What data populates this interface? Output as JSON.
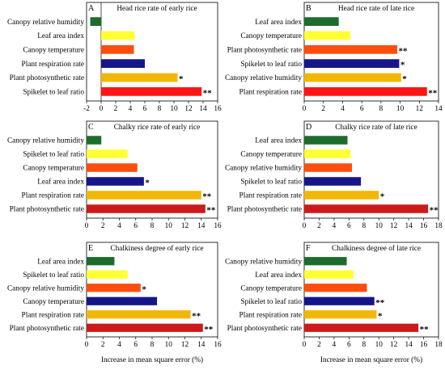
{
  "colors": {
    "dark_green": "#1e6b2e",
    "yellow": "#ffff33",
    "orange_red": "#ff4d0d",
    "navy": "#16168a",
    "gold": "#f2b705",
    "red": "#ff1515",
    "dark_red": "#cc1a1a"
  },
  "xlabel": "Increase in mean square error (%)",
  "chart_data": [
    {
      "type": "bar",
      "letter": "A",
      "title": "Head rice rate of early rice",
      "xlim": [
        -2,
        16
      ],
      "ticks": [
        "-2",
        "0",
        "2",
        "4",
        "6",
        "8",
        "10",
        "12",
        "14",
        "16"
      ],
      "categories": [
        "Canopy relative humidity",
        "Leaf area index",
        "Canopy temperature",
        "Plant respiration rate",
        "Plant photosynthetic rate",
        "Spikelet to leaf ratio"
      ],
      "values": [
        -1.5,
        4.6,
        4.5,
        6.0,
        10.5,
        13.8
      ],
      "bar_colors": [
        "#1e6b2e",
        "#ffff33",
        "#ff4d0d",
        "#16168a",
        "#f2b705",
        "#ff1515"
      ],
      "stars": [
        "",
        "",
        "",
        "",
        "*",
        "**"
      ]
    },
    {
      "type": "bar",
      "letter": "B",
      "title": "Head rice rate of late rice",
      "xlim": [
        0,
        14
      ],
      "ticks": [
        "0",
        "2",
        "4",
        "6",
        "8",
        "10",
        "12",
        "14"
      ],
      "categories": [
        "Leaf area index",
        "Canopy temperature",
        "Plant photosynthetic rate",
        "Spikelet to leaf ratio",
        "Canopy relative humidity",
        "Plant respiration rate"
      ],
      "values": [
        3.6,
        4.8,
        9.7,
        9.9,
        10.1,
        12.8
      ],
      "bar_colors": [
        "#1e6b2e",
        "#ffff33",
        "#ff4d0d",
        "#16168a",
        "#f2b705",
        "#ff1515"
      ],
      "stars": [
        "",
        "",
        "**",
        "*",
        "*",
        "**"
      ]
    },
    {
      "type": "bar",
      "letter": "C",
      "title": "Chalky rice rate of early rice",
      "xlim": [
        0,
        16
      ],
      "ticks": [
        "0",
        "2",
        "4",
        "6",
        "8",
        "10",
        "12",
        "14",
        "16"
      ],
      "categories": [
        "Canopy relative humidity",
        "Spikelet to leaf ratio",
        "Canopy temperature",
        "Leaf area index",
        "Plant respiration rate",
        "Plant photosynthetic rate"
      ],
      "values": [
        1.8,
        5.0,
        6.2,
        7.0,
        14.0,
        14.5
      ],
      "bar_colors": [
        "#1e6b2e",
        "#ffff33",
        "#ff4d0d",
        "#16168a",
        "#f2b705",
        "#cc1a1a"
      ],
      "stars": [
        "",
        "",
        "",
        "*",
        "**",
        "**"
      ]
    },
    {
      "type": "bar",
      "letter": "D",
      "title": "Chalky rice rate of late rice",
      "xlim": [
        0,
        18
      ],
      "ticks": [
        "0",
        "2",
        "4",
        "6",
        "8",
        "10",
        "12",
        "14",
        "16",
        "18"
      ],
      "categories": [
        "Leaf area index",
        "Canopy temperature",
        "Canopy relative humidity",
        "Spikelet to leaf ratio",
        "Plant respiration rate",
        "Plant photosynthetic rate"
      ],
      "values": [
        5.8,
        6.2,
        6.4,
        7.6,
        10.0,
        16.6
      ],
      "bar_colors": [
        "#1e6b2e",
        "#ffff33",
        "#ff4d0d",
        "#16168a",
        "#f2b705",
        "#cc1a1a"
      ],
      "stars": [
        "",
        "",
        "",
        "",
        "*",
        "**"
      ]
    },
    {
      "type": "bar",
      "letter": "E",
      "title": "Chalkiness degree of early rice",
      "xlim": [
        0,
        16
      ],
      "ticks": [
        "0",
        "2",
        "4",
        "6",
        "8",
        "10",
        "12",
        "14",
        "16"
      ],
      "categories": [
        "Leaf area index",
        "Spikelet to leaf ratio",
        "Canopy relative humidity",
        "Canopy temperature",
        "Plant respiration rate",
        "Plant photosynthetic rate"
      ],
      "values": [
        3.4,
        5.0,
        6.6,
        8.6,
        12.7,
        14.2
      ],
      "bar_colors": [
        "#1e6b2e",
        "#ffff33",
        "#ff4d0d",
        "#16168a",
        "#f2b705",
        "#cc1a1a"
      ],
      "stars": [
        "",
        "",
        "*",
        "",
        "**",
        "**"
      ]
    },
    {
      "type": "bar",
      "letter": "F",
      "title": "Chalkiness degree of late rice",
      "xlim": [
        0,
        18
      ],
      "ticks": [
        "0",
        "2",
        "4",
        "6",
        "8",
        "10",
        "12",
        "14",
        "16",
        "18"
      ],
      "categories": [
        "Canopy relative humidity",
        "Leaf area index",
        "Canopy temperature",
        "Spikelet to leaf ratio",
        "Plant respiration rate",
        "Plant photosynthetic rate"
      ],
      "values": [
        5.7,
        6.6,
        8.4,
        9.4,
        9.7,
        15.3
      ],
      "bar_colors": [
        "#1e6b2e",
        "#ffff33",
        "#ff4d0d",
        "#16168a",
        "#f2b705",
        "#cc1a1a"
      ],
      "stars": [
        "",
        "",
        "",
        "**",
        "*",
        "**"
      ]
    }
  ]
}
